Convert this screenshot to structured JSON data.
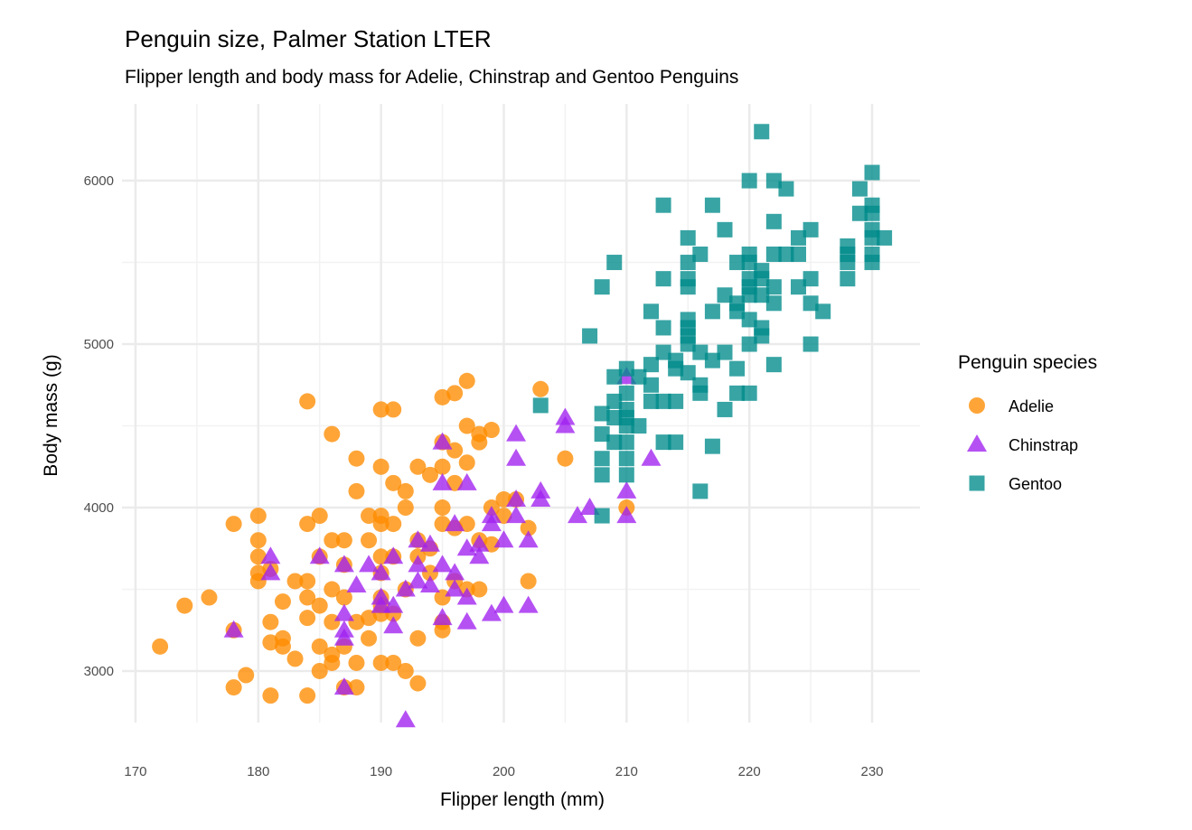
{
  "chart_data": {
    "type": "scatter",
    "title": "Penguin size, Palmer Station LTER",
    "subtitle": "Flipper length and body mass for Adelie, Chinstrap and Gentoo Penguins",
    "xlabel": "Flipper length (mm)",
    "ylabel": "Body mass (g)",
    "xlim": [
      168.9,
      233.9
    ],
    "ylim": [
      2685,
      6470
    ],
    "x_ticks": [
      170,
      180,
      190,
      200,
      210,
      220,
      230
    ],
    "y_ticks": [
      3000,
      4000,
      5000,
      6000
    ],
    "grid": true,
    "legend": {
      "title": "Penguin species",
      "position": "right"
    },
    "series": [
      {
        "name": "Adelie",
        "shape": "circle",
        "color": "#FF8C00",
        "points": [
          [
            172,
            3150
          ],
          [
            174,
            3400
          ],
          [
            176,
            3450
          ],
          [
            178,
            2900
          ],
          [
            178,
            3900
          ],
          [
            178,
            3250
          ],
          [
            179,
            2975
          ],
          [
            180,
            3950
          ],
          [
            180,
            3800
          ],
          [
            180,
            3700
          ],
          [
            180,
            3600
          ],
          [
            180,
            3550
          ],
          [
            181,
            3300
          ],
          [
            181,
            3175
          ],
          [
            181,
            2850
          ],
          [
            181,
            3625
          ],
          [
            182,
            3200
          ],
          [
            182,
            3150
          ],
          [
            182,
            3425
          ],
          [
            183,
            3550
          ],
          [
            183,
            3075
          ],
          [
            184,
            4650
          ],
          [
            184,
            3900
          ],
          [
            184,
            3325
          ],
          [
            184,
            2850
          ],
          [
            184,
            3550
          ],
          [
            184,
            3450
          ],
          [
            186,
            4450
          ],
          [
            185,
            3950
          ],
          [
            185,
            3400
          ],
          [
            185,
            3150
          ],
          [
            185,
            3000
          ],
          [
            185,
            3700
          ],
          [
            186,
            3500
          ],
          [
            186,
            3800
          ],
          [
            186,
            3100
          ],
          [
            186,
            3050
          ],
          [
            186,
            3300
          ],
          [
            187,
            3800
          ],
          [
            187,
            3650
          ],
          [
            187,
            3450
          ],
          [
            187,
            3150
          ],
          [
            187,
            2900
          ],
          [
            188,
            4300
          ],
          [
            188,
            4100
          ],
          [
            188,
            3300
          ],
          [
            188,
            2900
          ],
          [
            188,
            3050
          ],
          [
            189,
            3950
          ],
          [
            189,
            3800
          ],
          [
            189,
            3325
          ],
          [
            189,
            3200
          ],
          [
            190,
            4250
          ],
          [
            190,
            4600
          ],
          [
            190,
            3950
          ],
          [
            190,
            3900
          ],
          [
            190,
            3700
          ],
          [
            190,
            3600
          ],
          [
            190,
            3450
          ],
          [
            190,
            3400
          ],
          [
            190,
            3050
          ],
          [
            190,
            3350
          ],
          [
            191,
            4600
          ],
          [
            191,
            4150
          ],
          [
            191,
            3900
          ],
          [
            191,
            3700
          ],
          [
            191,
            3050
          ],
          [
            191,
            3350
          ],
          [
            192,
            4100
          ],
          [
            192,
            4000
          ],
          [
            192,
            3500
          ],
          [
            192,
            3000
          ],
          [
            193,
            4250
          ],
          [
            193,
            3800
          ],
          [
            193,
            3700
          ],
          [
            193,
            3200
          ],
          [
            193,
            2925
          ],
          [
            194,
            4200
          ],
          [
            194,
            3600
          ],
          [
            194,
            3750
          ],
          [
            195,
            4675
          ],
          [
            195,
            4400
          ],
          [
            195,
            4250
          ],
          [
            195,
            4000
          ],
          [
            195,
            3900
          ],
          [
            195,
            3450
          ],
          [
            195,
            3300
          ],
          [
            195,
            3250
          ],
          [
            196,
            4700
          ],
          [
            196,
            4350
          ],
          [
            196,
            4150
          ],
          [
            196,
            3875
          ],
          [
            196,
            3550
          ],
          [
            197,
            4775
          ],
          [
            197,
            4500
          ],
          [
            197,
            4275
          ],
          [
            197,
            3900
          ],
          [
            197,
            3500
          ],
          [
            198,
            4450
          ],
          [
            198,
            4400
          ],
          [
            198,
            3800
          ],
          [
            198,
            3500
          ],
          [
            199,
            4475
          ],
          [
            199,
            4000
          ],
          [
            199,
            3775
          ],
          [
            200,
            3950
          ],
          [
            200,
            4050
          ],
          [
            201,
            4050
          ],
          [
            202,
            3875
          ],
          [
            202,
            3550
          ],
          [
            203,
            4725
          ],
          [
            205,
            4300
          ],
          [
            210,
            4000
          ]
        ]
      },
      {
        "name": "Chinstrap",
        "shape": "triangle",
        "color": "#A020F0",
        "points": [
          [
            178,
            3250
          ],
          [
            181,
            3700
          ],
          [
            181,
            3600
          ],
          [
            185,
            3700
          ],
          [
            187,
            3650
          ],
          [
            187,
            3350
          ],
          [
            187,
            3250
          ],
          [
            187,
            3200
          ],
          [
            187,
            2900
          ],
          [
            188,
            3525
          ],
          [
            189,
            3650
          ],
          [
            190,
            3450
          ],
          [
            190,
            3400
          ],
          [
            190,
            3600
          ],
          [
            191,
            3400
          ],
          [
            191,
            3275
          ],
          [
            191,
            3700
          ],
          [
            192,
            3500
          ],
          [
            192,
            2700
          ],
          [
            193,
            3800
          ],
          [
            193,
            3650
          ],
          [
            193,
            3550
          ],
          [
            194,
            3775
          ],
          [
            194,
            3525
          ],
          [
            195,
            4400
          ],
          [
            195,
            4150
          ],
          [
            195,
            3650
          ],
          [
            195,
            3325
          ],
          [
            196,
            3600
          ],
          [
            196,
            3500
          ],
          [
            196,
            3900
          ],
          [
            197,
            4150
          ],
          [
            197,
            3750
          ],
          [
            197,
            3450
          ],
          [
            197,
            3300
          ],
          [
            198,
            3775
          ],
          [
            198,
            3700
          ],
          [
            199,
            3950
          ],
          [
            199,
            3900
          ],
          [
            199,
            3350
          ],
          [
            200,
            3800
          ],
          [
            200,
            3400
          ],
          [
            201,
            4450
          ],
          [
            201,
            4300
          ],
          [
            201,
            4050
          ],
          [
            201,
            3950
          ],
          [
            202,
            3800
          ],
          [
            202,
            3400
          ],
          [
            203,
            4050
          ],
          [
            203,
            4100
          ],
          [
            205,
            4550
          ],
          [
            205,
            4500
          ],
          [
            206,
            3950
          ],
          [
            207,
            4000
          ],
          [
            210,
            4800
          ],
          [
            210,
            4100
          ],
          [
            210,
            3950
          ],
          [
            212,
            4300
          ]
        ]
      },
      {
        "name": "Gentoo",
        "shape": "square",
        "color": "#008B8B",
        "points": [
          [
            221,
            6300
          ],
          [
            230,
            6050
          ],
          [
            220,
            6000
          ],
          [
            222,
            6000
          ],
          [
            223,
            5950
          ],
          [
            229,
            5950
          ],
          [
            213,
            5850
          ],
          [
            217,
            5850
          ],
          [
            230,
            5850
          ],
          [
            229,
            5800
          ],
          [
            230,
            5800
          ],
          [
            222,
            5750
          ],
          [
            218,
            5700
          ],
          [
            230,
            5700
          ],
          [
            230,
            5650
          ],
          [
            231,
            5650
          ],
          [
            225,
            5700
          ],
          [
            224,
            5650
          ],
          [
            215,
            5650
          ],
          [
            228,
            5600
          ],
          [
            228,
            5550
          ],
          [
            228,
            5500
          ],
          [
            228,
            5400
          ],
          [
            230,
            5550
          ],
          [
            230,
            5500
          ],
          [
            216,
            5550
          ],
          [
            220,
            5550
          ],
          [
            222,
            5550
          ],
          [
            223,
            5550
          ],
          [
            224,
            5550
          ],
          [
            209,
            5500
          ],
          [
            215,
            5500
          ],
          [
            219,
            5500
          ],
          [
            220,
            5500
          ],
          [
            213,
            5400
          ],
          [
            208,
            5350
          ],
          [
            215,
            5400
          ],
          [
            215,
            5350
          ],
          [
            221,
            5450
          ],
          [
            221,
            5400
          ],
          [
            220,
            5400
          ],
          [
            220,
            5350
          ],
          [
            222,
            5350
          ],
          [
            225,
            5400
          ],
          [
            224,
            5350
          ],
          [
            218,
            5300
          ],
          [
            220,
            5300
          ],
          [
            221,
            5300
          ],
          [
            222,
            5250
          ],
          [
            225,
            5250
          ],
          [
            226,
            5200
          ],
          [
            217,
            5200
          ],
          [
            219,
            5250
          ],
          [
            219,
            5200
          ],
          [
            212,
            5200
          ],
          [
            213,
            5100
          ],
          [
            220,
            5150
          ],
          [
            221,
            5100
          ],
          [
            220,
            5000
          ],
          [
            221,
            5050
          ],
          [
            207,
            5050
          ],
          [
            215,
            5150
          ],
          [
            215,
            5100
          ],
          [
            215,
            5050
          ],
          [
            215,
            5000
          ],
          [
            216,
            4950
          ],
          [
            213,
            4950
          ],
          [
            214,
            4900
          ],
          [
            218,
            4950
          ],
          [
            225,
            5000
          ],
          [
            217,
            4900
          ],
          [
            219,
            4850
          ],
          [
            222,
            4875
          ],
          [
            212,
            4875
          ],
          [
            214,
            4850
          ],
          [
            215,
            4825
          ],
          [
            209,
            4800
          ],
          [
            210,
            4850
          ],
          [
            211,
            4800
          ],
          [
            212,
            4750
          ],
          [
            212,
            4650
          ],
          [
            213,
            4650
          ],
          [
            214,
            4650
          ],
          [
            216,
            4750
          ],
          [
            216,
            4700
          ],
          [
            219,
            4700
          ],
          [
            220,
            4700
          ],
          [
            218,
            4600
          ],
          [
            208,
            4575
          ],
          [
            209,
            4650
          ],
          [
            209,
            4550
          ],
          [
            210,
            4700
          ],
          [
            210,
            4600
          ],
          [
            210,
            4550
          ],
          [
            210,
            4500
          ],
          [
            211,
            4500
          ],
          [
            208,
            4450
          ],
          [
            208,
            4300
          ],
          [
            208,
            4200
          ],
          [
            209,
            4400
          ],
          [
            210,
            4400
          ],
          [
            210,
            4300
          ],
          [
            210,
            4200
          ],
          [
            213,
            4400
          ],
          [
            214,
            4400
          ],
          [
            217,
            4375
          ],
          [
            216,
            4100
          ],
          [
            208,
            3950
          ],
          [
            203,
            4625
          ]
        ]
      }
    ]
  }
}
